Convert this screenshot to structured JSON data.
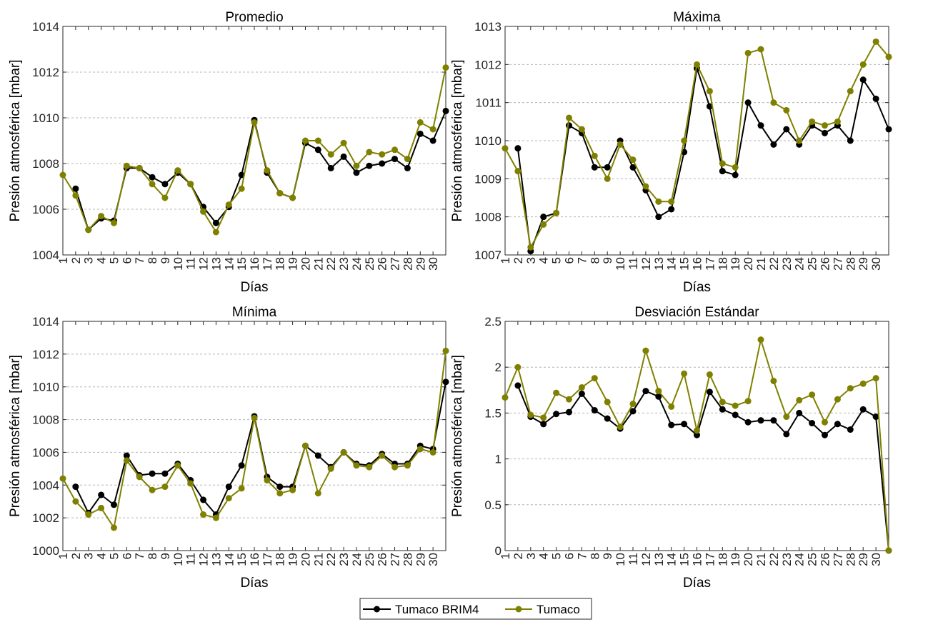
{
  "colors": {
    "brim4": "#000000",
    "tumaco": "#808000",
    "grid": "#b4b4b4",
    "axis": "#262626"
  },
  "legend": {
    "items": [
      "Tumaco BRIM4",
      "Tumaco"
    ],
    "placement": "bottom-center"
  },
  "chart_data": [
    {
      "type": "line",
      "title": "Promedio",
      "xlabel": "Días",
      "ylabel": "Presión atmosférica [mbar]",
      "categories": [
        "1",
        "2",
        "3",
        "4",
        "5",
        "6",
        "7",
        "8",
        "9",
        "10",
        "11",
        "12",
        "13",
        "14",
        "15",
        "16",
        "17",
        "18",
        "19",
        "20",
        "21",
        "22",
        "23",
        "24",
        "25",
        "26",
        "27",
        "28",
        "29",
        "30"
      ],
      "ylim": [
        1004,
        1014
      ],
      "yticks": [
        1004,
        1006,
        1008,
        1010,
        1012,
        1014
      ],
      "ytick_labels": [
        "1004",
        "1006",
        "1008",
        "1010",
        "1012",
        "1014"
      ],
      "series": [
        {
          "name": "Tumaco BRIM4",
          "x": [
            2,
            3,
            4,
            5,
            6,
            7,
            8,
            9,
            10,
            11,
            12,
            13,
            14,
            15,
            16,
            17,
            18,
            19,
            20,
            21,
            22,
            23,
            24,
            25,
            26,
            27,
            28,
            29,
            30,
            31
          ],
          "values": [
            1006.9,
            1005.1,
            1005.6,
            1005.5,
            1007.8,
            1007.8,
            1007.4,
            1007.1,
            1007.6,
            1007.1,
            1006.1,
            1005.4,
            1006.1,
            1007.5,
            1009.9,
            1007.6,
            1006.7,
            1006.5,
            1008.9,
            1008.6,
            1007.8,
            1008.3,
            1007.6,
            1007.9,
            1008.0,
            1008.2,
            1007.8,
            1009.3,
            1009.0,
            1010.3
          ]
        },
        {
          "name": "Tumaco",
          "x": [
            1,
            2,
            3,
            4,
            5,
            6,
            7,
            8,
            9,
            10,
            11,
            12,
            13,
            14,
            15,
            16,
            17,
            18,
            19,
            20,
            21,
            22,
            23,
            24,
            25,
            26,
            27,
            28,
            29,
            30,
            31
          ],
          "values": [
            1007.5,
            1006.6,
            1005.1,
            1005.7,
            1005.4,
            1007.9,
            1007.8,
            1007.1,
            1006.5,
            1007.7,
            1007.1,
            1005.9,
            1005.0,
            1006.2,
            1006.9,
            1009.8,
            1007.7,
            1006.7,
            1006.5,
            1009.0,
            1009.0,
            1008.4,
            1008.9,
            1007.9,
            1008.5,
            1008.4,
            1008.6,
            1008.2,
            1009.8,
            1009.5,
            1012.2
          ]
        }
      ]
    },
    {
      "type": "line",
      "title": "Máxima",
      "xlabel": "Días",
      "ylabel": "Presión atmosférica [mbar]",
      "categories": [
        "1",
        "2",
        "3",
        "4",
        "5",
        "6",
        "7",
        "8",
        "9",
        "10",
        "11",
        "12",
        "13",
        "14",
        "15",
        "16",
        "17",
        "18",
        "19",
        "20",
        "21",
        "22",
        "23",
        "24",
        "25",
        "26",
        "27",
        "28",
        "29",
        "30"
      ],
      "ylim": [
        1007,
        1013
      ],
      "yticks": [
        1007,
        1008,
        1009,
        1010,
        1011,
        1012,
        1013
      ],
      "ytick_labels": [
        "1007",
        "1008",
        "1009",
        "1010",
        "1011",
        "1012",
        "1013"
      ],
      "series": [
        {
          "name": "Tumaco BRIM4",
          "x": [
            2,
            3,
            4,
            5,
            6,
            7,
            8,
            9,
            10,
            11,
            12,
            13,
            14,
            15,
            16,
            17,
            18,
            19,
            20,
            21,
            22,
            23,
            24,
            25,
            26,
            27,
            28,
            29,
            30,
            31
          ],
          "values": [
            1009.8,
            1007.1,
            1008.0,
            1008.1,
            1010.4,
            1010.2,
            1009.3,
            1009.3,
            1010.0,
            1009.3,
            1008.7,
            1008.0,
            1008.2,
            1009.7,
            1011.9,
            1010.9,
            1009.2,
            1009.1,
            1011.0,
            1010.4,
            1009.9,
            1010.3,
            1009.9,
            1010.4,
            1010.2,
            1010.4,
            1010.0,
            1011.6,
            1011.1,
            1010.3
          ]
        },
        {
          "name": "Tumaco",
          "x": [
            1,
            2,
            3,
            4,
            5,
            6,
            7,
            8,
            9,
            10,
            11,
            12,
            13,
            14,
            15,
            16,
            17,
            18,
            19,
            20,
            21,
            22,
            23,
            24,
            25,
            26,
            27,
            28,
            29,
            30,
            31
          ],
          "values": [
            1009.8,
            1009.2,
            1007.2,
            1007.8,
            1008.1,
            1010.6,
            1010.3,
            1009.6,
            1009.0,
            1009.9,
            1009.5,
            1008.8,
            1008.4,
            1008.4,
            1010.0,
            1012.0,
            1011.3,
            1009.4,
            1009.3,
            1012.3,
            1012.4,
            1011.0,
            1010.8,
            1010.0,
            1010.5,
            1010.4,
            1010.5,
            1011.3,
            1012.0,
            1012.6,
            1012.2
          ]
        }
      ]
    },
    {
      "type": "line",
      "title": "Mínima",
      "xlabel": "Días",
      "ylabel": "Presión atmosférica [mbar]",
      "categories": [
        "1",
        "2",
        "3",
        "4",
        "5",
        "6",
        "7",
        "8",
        "9",
        "10",
        "11",
        "12",
        "13",
        "14",
        "15",
        "16",
        "17",
        "18",
        "19",
        "20",
        "21",
        "22",
        "23",
        "24",
        "25",
        "26",
        "27",
        "28",
        "29",
        "30"
      ],
      "ylim": [
        1000,
        1014
      ],
      "yticks": [
        1000,
        1002,
        1004,
        1006,
        1008,
        1010,
        1012,
        1014
      ],
      "ytick_labels": [
        "1000",
        "1002",
        "1004",
        "1006",
        "1008",
        "1010",
        "1012",
        "1014"
      ],
      "series": [
        {
          "name": "Tumaco BRIM4",
          "x": [
            2,
            3,
            4,
            5,
            6,
            7,
            8,
            9,
            10,
            11,
            12,
            13,
            14,
            15,
            16,
            17,
            18,
            19,
            20,
            21,
            22,
            23,
            24,
            25,
            26,
            27,
            28,
            29,
            30,
            31
          ],
          "values": [
            1003.9,
            1002.3,
            1003.4,
            1002.8,
            1005.8,
            1004.6,
            1004.7,
            1004.7,
            1005.3,
            1004.3,
            1003.1,
            1002.2,
            1003.9,
            1005.2,
            1008.2,
            1004.5,
            1003.9,
            1003.9,
            1006.4,
            1005.8,
            1005.1,
            1006.0,
            1005.3,
            1005.2,
            1005.9,
            1005.3,
            1005.3,
            1006.4,
            1006.2,
            1010.3
          ]
        },
        {
          "name": "Tumaco",
          "x": [
            1,
            2,
            3,
            4,
            5,
            6,
            7,
            8,
            9,
            10,
            11,
            12,
            13,
            14,
            15,
            16,
            17,
            18,
            19,
            20,
            21,
            22,
            23,
            24,
            25,
            26,
            27,
            28,
            29,
            30,
            31
          ],
          "values": [
            1004.4,
            1003.0,
            1002.2,
            1002.6,
            1001.4,
            1005.5,
            1004.5,
            1003.7,
            1003.9,
            1005.2,
            1004.1,
            1002.2,
            1002.0,
            1003.2,
            1003.8,
            1008.1,
            1004.3,
            1003.5,
            1003.7,
            1006.4,
            1003.5,
            1005.0,
            1006.0,
            1005.2,
            1005.1,
            1005.8,
            1005.1,
            1005.2,
            1006.2,
            1006.0,
            1012.2
          ]
        }
      ]
    },
    {
      "type": "line",
      "title": "Desviación Estándar",
      "xlabel": "Días",
      "ylabel": "Presión atmosférica [mbar]",
      "categories": [
        "1",
        "2",
        "3",
        "4",
        "5",
        "6",
        "7",
        "8",
        "9",
        "10",
        "11",
        "12",
        "13",
        "14",
        "15",
        "16",
        "17",
        "18",
        "19",
        "20",
        "21",
        "22",
        "23",
        "24",
        "25",
        "26",
        "27",
        "28",
        "29",
        "30"
      ],
      "ylim": [
        0,
        2.5
      ],
      "yticks": [
        0,
        0.5,
        1,
        1.5,
        2,
        2.5
      ],
      "ytick_labels": [
        "0",
        "0.5",
        "1",
        "1.5",
        "2",
        "2.5"
      ],
      "series": [
        {
          "name": "Tumaco BRIM4",
          "x": [
            2,
            3,
            4,
            5,
            6,
            7,
            8,
            9,
            10,
            11,
            12,
            13,
            14,
            15,
            16,
            17,
            18,
            19,
            20,
            21,
            22,
            23,
            24,
            25,
            26,
            27,
            28,
            29,
            30,
            31
          ],
          "values": [
            1.8,
            1.46,
            1.38,
            1.49,
            1.51,
            1.71,
            1.53,
            1.44,
            1.33,
            1.52,
            1.74,
            1.68,
            1.37,
            1.38,
            1.26,
            1.73,
            1.54,
            1.48,
            1.4,
            1.42,
            1.42,
            1.27,
            1.5,
            1.39,
            1.26,
            1.38,
            1.32,
            1.54,
            1.46,
            0.0
          ]
        },
        {
          "name": "Tumaco",
          "x": [
            1,
            2,
            3,
            4,
            5,
            6,
            7,
            8,
            9,
            10,
            11,
            12,
            13,
            14,
            15,
            16,
            17,
            18,
            19,
            20,
            21,
            22,
            23,
            24,
            25,
            26,
            27,
            28,
            29,
            30,
            31
          ],
          "values": [
            1.67,
            2.0,
            1.48,
            1.45,
            1.72,
            1.65,
            1.78,
            1.88,
            1.62,
            1.35,
            1.6,
            2.18,
            1.74,
            1.57,
            1.93,
            1.31,
            1.92,
            1.62,
            1.58,
            1.63,
            2.3,
            1.85,
            1.46,
            1.64,
            1.7,
            1.4,
            1.65,
            1.77,
            1.82,
            1.88,
            0.0
          ]
        }
      ]
    }
  ]
}
